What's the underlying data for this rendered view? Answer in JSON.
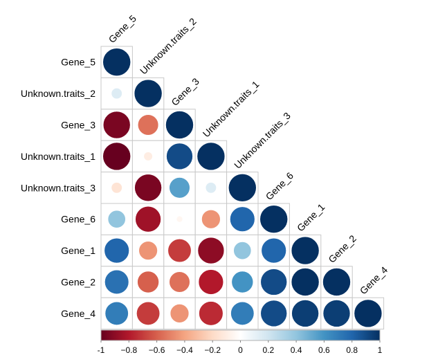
{
  "chart_data": {
    "type": "heatmap",
    "subtype": "correlation-circles-lower-triangle",
    "variables": [
      "Gene_5",
      "Unknown.traits_2",
      "Gene_3",
      "Unknown.traits_1",
      "Unknown.traits_3",
      "Gene_6",
      "Gene_1",
      "Gene_2",
      "Gene_4"
    ],
    "matrix": [
      [
        1.0
      ],
      [
        0.15,
        1.0
      ],
      [
        -0.95,
        -0.55,
        1.0
      ],
      [
        -1.0,
        -0.1,
        0.9,
        1.0
      ],
      [
        -0.15,
        -0.95,
        0.55,
        0.15,
        1.0
      ],
      [
        0.4,
        -0.85,
        -0.05,
        -0.45,
        0.8,
        1.0
      ],
      [
        0.8,
        -0.45,
        -0.7,
        -0.9,
        0.4,
        0.8,
        1.0
      ],
      [
        0.75,
        -0.6,
        -0.55,
        -0.8,
        0.6,
        0.9,
        1.0,
        1.0
      ],
      [
        0.7,
        -0.7,
        -0.45,
        -0.75,
        0.7,
        0.9,
        0.95,
        0.95,
        1.0
      ]
    ],
    "colorbar": {
      "min": -1,
      "max": 1,
      "ticks": [
        "-1",
        "−0.8",
        "−0.6",
        "−0.4",
        "−0.2",
        "0",
        "0.2",
        "0.4",
        "0.6",
        "0.8",
        "1"
      ],
      "colors": [
        "#67001f",
        "#b2182b",
        "#d6604d",
        "#f4a582",
        "#fddbc7",
        "#ffffff",
        "#d1e5f0",
        "#92c5de",
        "#4393c3",
        "#2166ac",
        "#053061"
      ]
    },
    "grid": true
  }
}
